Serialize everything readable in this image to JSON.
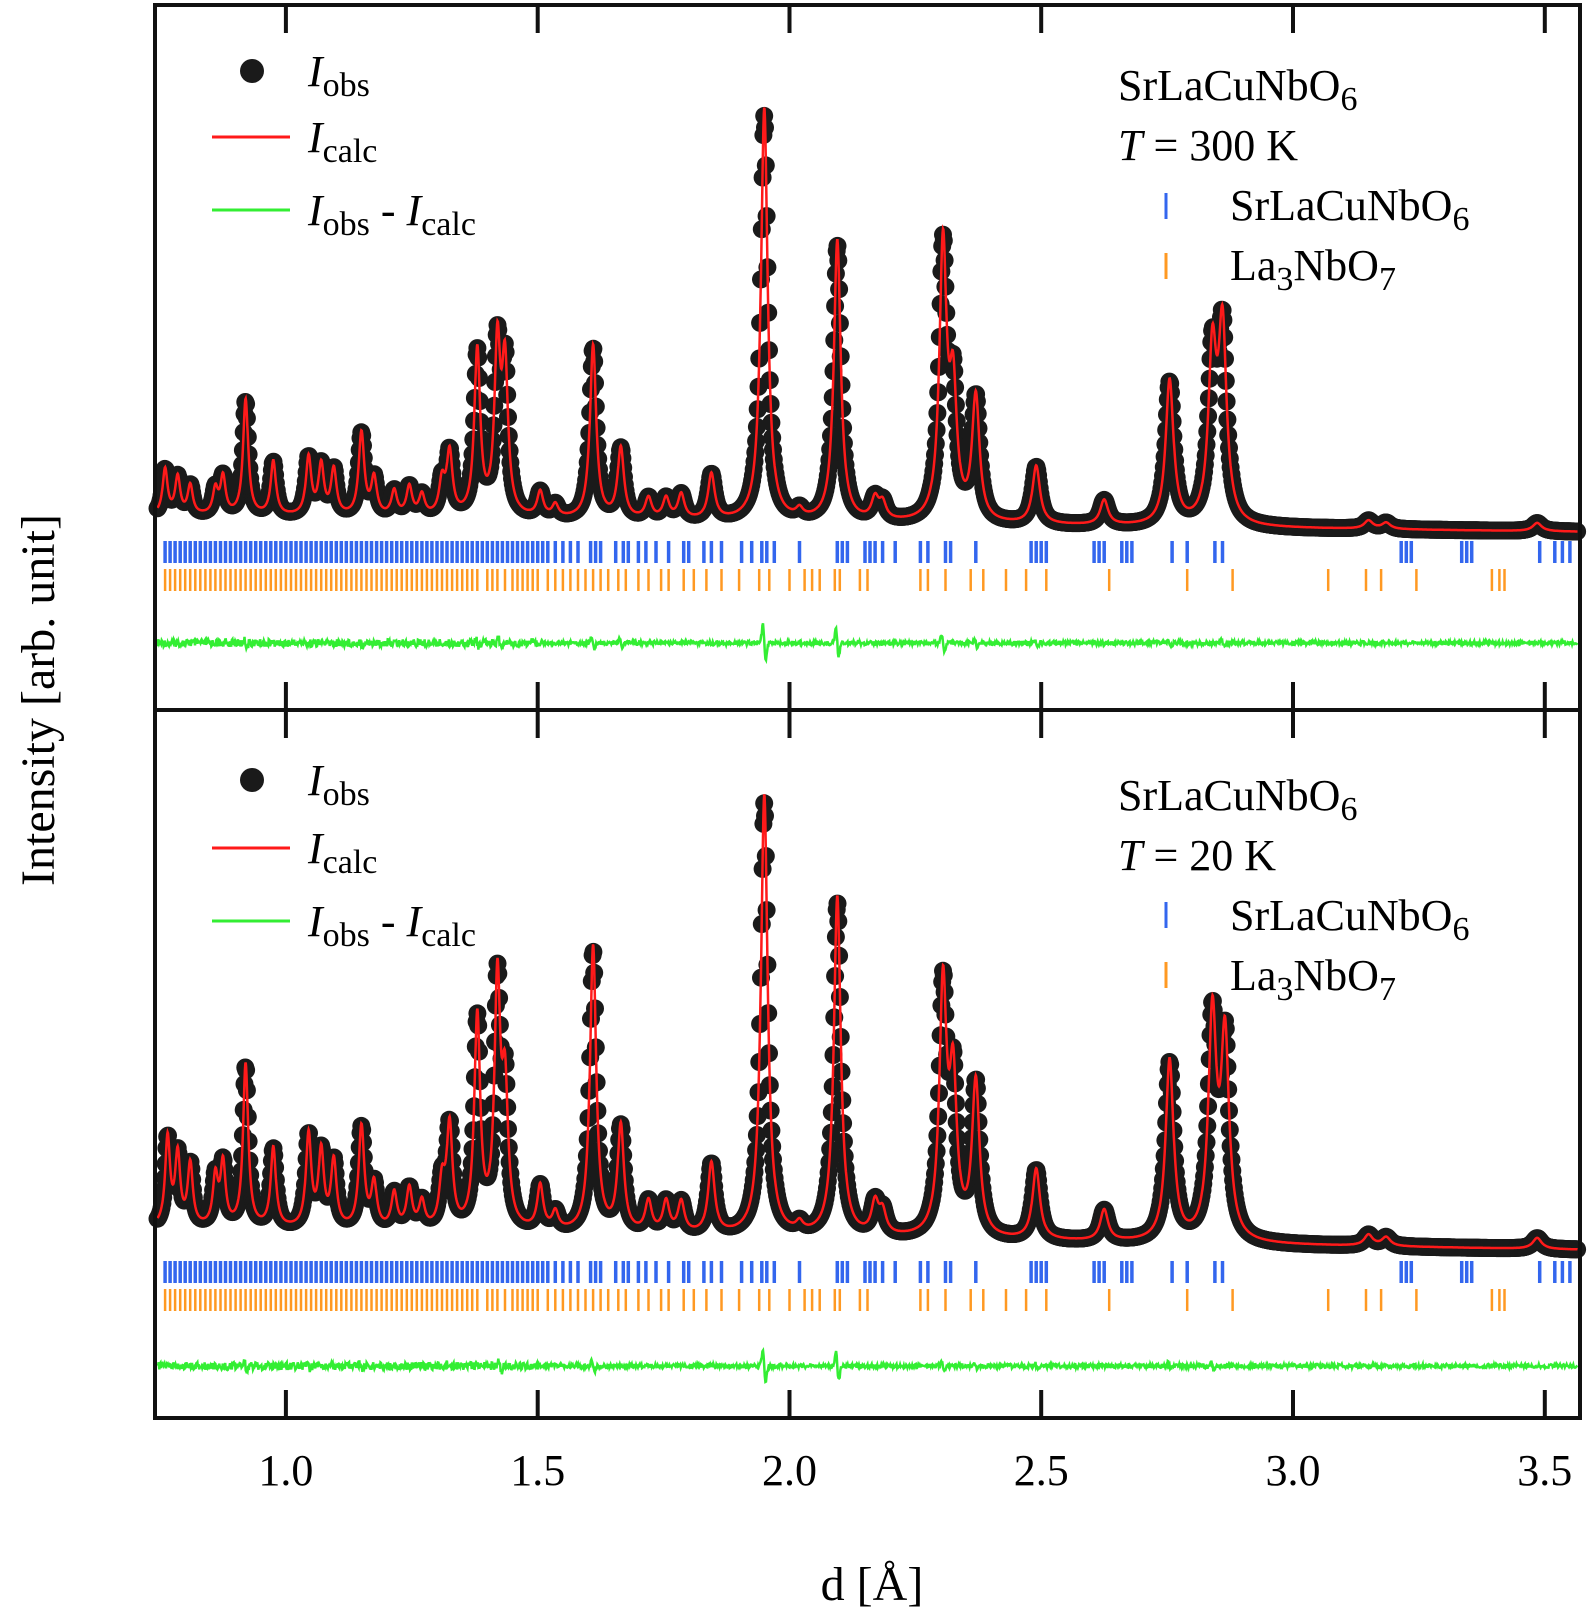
{
  "chart_data": {
    "type": "line",
    "xlabel": "d [Å]",
    "ylabel": "Intensity [arb. unit]",
    "xlim": [
      0.74,
      3.57
    ],
    "xticks": [
      "1.0",
      "1.5",
      "2.0",
      "2.5",
      "3.0",
      "3.5"
    ],
    "xtick_values": [
      1.0,
      1.5,
      2.0,
      2.5,
      3.0,
      3.5
    ],
    "colors": {
      "obs": "#1a1a1a",
      "calc": "#ff1a1a",
      "diff": "#33ee33",
      "phase1": "#3366ee",
      "phase2": "#ff9922"
    },
    "legend": {
      "obs": {
        "main": "I",
        "sub": "obs"
      },
      "calc": {
        "main": "I",
        "sub": "calc"
      },
      "diff": {
        "main": "I",
        "sub": "obs",
        "sep": " - ",
        "main2": "I",
        "sub2": "calc"
      }
    },
    "phases": [
      {
        "name": "SrLaCuNbO",
        "sub": "6"
      },
      {
        "name": "La",
        "sub": "3",
        "name2": "NbO",
        "sub2": "7"
      }
    ],
    "panels": [
      {
        "id": "top",
        "compound": {
          "name": "SrLaCuNbO",
          "sub": "6"
        },
        "temperature": {
          "symbol": "T",
          "text": " = 300 K"
        },
        "baseline": 0.04,
        "peaks": [
          {
            "d": 0.76,
            "h": 0.11
          },
          {
            "d": 0.785,
            "h": 0.09
          },
          {
            "d": 0.81,
            "h": 0.07
          },
          {
            "d": 0.86,
            "h": 0.06
          },
          {
            "d": 0.875,
            "h": 0.09
          },
          {
            "d": 0.92,
            "h": 0.28
          },
          {
            "d": 0.975,
            "h": 0.13
          },
          {
            "d": 1.045,
            "h": 0.14
          },
          {
            "d": 1.07,
            "h": 0.12
          },
          {
            "d": 1.095,
            "h": 0.11
          },
          {
            "d": 1.15,
            "h": 0.2
          },
          {
            "d": 1.175,
            "h": 0.09
          },
          {
            "d": 1.215,
            "h": 0.06
          },
          {
            "d": 1.245,
            "h": 0.07
          },
          {
            "d": 1.27,
            "h": 0.05
          },
          {
            "d": 1.31,
            "h": 0.08
          },
          {
            "d": 1.325,
            "h": 0.15
          },
          {
            "d": 1.38,
            "h": 0.4
          },
          {
            "d": 1.42,
            "h": 0.4
          },
          {
            "d": 1.435,
            "h": 0.35
          },
          {
            "d": 1.505,
            "h": 0.06
          },
          {
            "d": 1.535,
            "h": 0.03
          },
          {
            "d": 1.61,
            "h": 0.42
          },
          {
            "d": 1.665,
            "h": 0.17
          },
          {
            "d": 1.72,
            "h": 0.05
          },
          {
            "d": 1.755,
            "h": 0.05
          },
          {
            "d": 1.785,
            "h": 0.06
          },
          {
            "d": 1.845,
            "h": 0.11
          },
          {
            "d": 1.95,
            "h": 1.0
          },
          {
            "d": 2.02,
            "h": 0.02
          },
          {
            "d": 2.095,
            "h": 0.68
          },
          {
            "d": 2.17,
            "h": 0.05
          },
          {
            "d": 2.185,
            "h": 0.04
          },
          {
            "d": 2.305,
            "h": 0.66
          },
          {
            "d": 2.325,
            "h": 0.3
          },
          {
            "d": 2.37,
            "h": 0.3
          },
          {
            "d": 2.49,
            "h": 0.14
          },
          {
            "d": 2.625,
            "h": 0.06
          },
          {
            "d": 2.755,
            "h": 0.35
          },
          {
            "d": 2.84,
            "h": 0.4
          },
          {
            "d": 2.86,
            "h": 0.46
          },
          {
            "d": 3.15,
            "h": 0.02
          },
          {
            "d": 3.185,
            "h": 0.015
          },
          {
            "d": 3.485,
            "h": 0.02
          }
        ],
        "diff_features": [
          {
            "d": 0.92,
            "a": 0.5
          },
          {
            "d": 1.15,
            "a": 0.4
          },
          {
            "d": 1.38,
            "a": 0.6
          },
          {
            "d": 1.425,
            "a": 0.9
          },
          {
            "d": 1.61,
            "a": 1.0
          },
          {
            "d": 1.665,
            "a": 0.6
          },
          {
            "d": 1.95,
            "a": 3.0
          },
          {
            "d": 2.095,
            "a": 2.2
          },
          {
            "d": 2.305,
            "a": 1.4
          },
          {
            "d": 2.37,
            "a": 0.7
          },
          {
            "d": 2.49,
            "a": 0.5
          },
          {
            "d": 2.755,
            "a": 0.5
          },
          {
            "d": 2.86,
            "a": 0.5
          }
        ]
      },
      {
        "id": "bottom",
        "compound": {
          "name": "SrLaCuNbO",
          "sub": "6"
        },
        "temperature": {
          "symbol": "T",
          "text": " = 20 K"
        },
        "baseline": 0.05,
        "peaks": [
          {
            "d": 0.765,
            "h": 0.2
          },
          {
            "d": 0.785,
            "h": 0.16
          },
          {
            "d": 0.81,
            "h": 0.14
          },
          {
            "d": 0.86,
            "h": 0.11
          },
          {
            "d": 0.875,
            "h": 0.14
          },
          {
            "d": 0.92,
            "h": 0.37
          },
          {
            "d": 0.975,
            "h": 0.18
          },
          {
            "d": 1.045,
            "h": 0.21
          },
          {
            "d": 1.07,
            "h": 0.17
          },
          {
            "d": 1.095,
            "h": 0.15
          },
          {
            "d": 1.15,
            "h": 0.23
          },
          {
            "d": 1.175,
            "h": 0.1
          },
          {
            "d": 1.215,
            "h": 0.08
          },
          {
            "d": 1.245,
            "h": 0.09
          },
          {
            "d": 1.27,
            "h": 0.06
          },
          {
            "d": 1.31,
            "h": 0.1
          },
          {
            "d": 1.325,
            "h": 0.23
          },
          {
            "d": 1.38,
            "h": 0.48
          },
          {
            "d": 1.42,
            "h": 0.55
          },
          {
            "d": 1.435,
            "h": 0.3
          },
          {
            "d": 1.505,
            "h": 0.1
          },
          {
            "d": 1.535,
            "h": 0.04
          },
          {
            "d": 1.61,
            "h": 0.65
          },
          {
            "d": 1.665,
            "h": 0.24
          },
          {
            "d": 1.72,
            "h": 0.07
          },
          {
            "d": 1.755,
            "h": 0.07
          },
          {
            "d": 1.785,
            "h": 0.07
          },
          {
            "d": 1.845,
            "h": 0.16
          },
          {
            "d": 1.95,
            "h": 1.0
          },
          {
            "d": 2.02,
            "h": 0.02
          },
          {
            "d": 2.095,
            "h": 0.77
          },
          {
            "d": 2.17,
            "h": 0.07
          },
          {
            "d": 2.185,
            "h": 0.05
          },
          {
            "d": 2.305,
            "h": 0.56
          },
          {
            "d": 2.325,
            "h": 0.34
          },
          {
            "d": 2.37,
            "h": 0.35
          },
          {
            "d": 2.49,
            "h": 0.16
          },
          {
            "d": 2.625,
            "h": 0.07
          },
          {
            "d": 2.755,
            "h": 0.41
          },
          {
            "d": 2.84,
            "h": 0.5
          },
          {
            "d": 2.865,
            "h": 0.45
          },
          {
            "d": 3.15,
            "h": 0.025
          },
          {
            "d": 3.185,
            "h": 0.02
          },
          {
            "d": 3.485,
            "h": 0.025
          }
        ],
        "diff_features": [
          {
            "d": 0.92,
            "a": 0.8
          },
          {
            "d": 1.045,
            "a": 0.5
          },
          {
            "d": 1.15,
            "a": 0.4
          },
          {
            "d": 1.325,
            "a": 0.5
          },
          {
            "d": 1.425,
            "a": 0.9
          },
          {
            "d": 1.61,
            "a": 0.9
          },
          {
            "d": 1.95,
            "a": 2.6
          },
          {
            "d": 2.095,
            "a": 2.4
          },
          {
            "d": 2.305,
            "a": 0.7
          },
          {
            "d": 2.37,
            "a": 0.6
          },
          {
            "d": 2.49,
            "a": 0.5
          },
          {
            "d": 2.755,
            "a": 0.5
          },
          {
            "d": 2.84,
            "a": 0.6
          }
        ]
      }
    ],
    "ticks_phase1": [
      0.76,
      0.77,
      0.78,
      0.79,
      0.8,
      0.81,
      0.82,
      0.83,
      0.84,
      0.85,
      0.86,
      0.87,
      0.88,
      0.89,
      0.9,
      0.91,
      0.92,
      0.93,
      0.94,
      0.95,
      0.96,
      0.97,
      0.98,
      0.99,
      1.0,
      1.01,
      1.02,
      1.03,
      1.04,
      1.05,
      1.06,
      1.07,
      1.08,
      1.09,
      1.1,
      1.11,
      1.12,
      1.13,
      1.14,
      1.15,
      1.16,
      1.17,
      1.18,
      1.19,
      1.2,
      1.21,
      1.22,
      1.23,
      1.24,
      1.25,
      1.26,
      1.27,
      1.28,
      1.29,
      1.3,
      1.31,
      1.32,
      1.33,
      1.34,
      1.35,
      1.36,
      1.37,
      1.38,
      1.39,
      1.4,
      1.41,
      1.42,
      1.43,
      1.44,
      1.45,
      1.46,
      1.47,
      1.48,
      1.49,
      1.5,
      1.51,
      1.52,
      1.535,
      1.55,
      1.565,
      1.58,
      1.605,
      1.615,
      1.625,
      1.655,
      1.67,
      1.68,
      1.7,
      1.715,
      1.735,
      1.76,
      1.79,
      1.8,
      1.83,
      1.845,
      1.865,
      1.905,
      1.925,
      1.945,
      1.955,
      1.97,
      2.02,
      2.095,
      2.105,
      2.115,
      2.15,
      2.16,
      2.17,
      2.185,
      2.21,
      2.26,
      2.275,
      2.31,
      2.32,
      2.37,
      2.48,
      2.49,
      2.5,
      2.51,
      2.605,
      2.615,
      2.625,
      2.66,
      2.67,
      2.68,
      2.76,
      2.79,
      2.845,
      2.86,
      3.215,
      3.225,
      3.235,
      3.335,
      3.345,
      3.355,
      3.49,
      3.52,
      3.535,
      3.55
    ],
    "ticks_phase2": [
      0.76,
      0.77,
      0.78,
      0.79,
      0.8,
      0.81,
      0.82,
      0.83,
      0.84,
      0.85,
      0.86,
      0.87,
      0.88,
      0.89,
      0.9,
      0.91,
      0.92,
      0.93,
      0.94,
      0.95,
      0.96,
      0.97,
      0.98,
      0.99,
      1.0,
      1.01,
      1.02,
      1.03,
      1.04,
      1.05,
      1.06,
      1.07,
      1.08,
      1.09,
      1.1,
      1.11,
      1.12,
      1.13,
      1.14,
      1.15,
      1.16,
      1.17,
      1.18,
      1.19,
      1.2,
      1.21,
      1.22,
      1.23,
      1.24,
      1.25,
      1.26,
      1.27,
      1.28,
      1.29,
      1.3,
      1.31,
      1.32,
      1.33,
      1.34,
      1.35,
      1.36,
      1.37,
      1.38,
      1.4,
      1.41,
      1.42,
      1.435,
      1.45,
      1.46,
      1.47,
      1.48,
      1.49,
      1.5,
      1.52,
      1.535,
      1.55,
      1.565,
      1.58,
      1.595,
      1.61,
      1.625,
      1.64,
      1.66,
      1.675,
      1.7,
      1.72,
      1.745,
      1.76,
      1.79,
      1.81,
      1.835,
      1.865,
      1.9,
      1.94,
      1.96,
      2.0,
      2.03,
      2.045,
      2.06,
      2.09,
      2.1,
      2.14,
      2.155,
      2.26,
      2.275,
      2.31,
      2.36,
      2.385,
      2.43,
      2.47,
      2.51,
      2.635,
      2.79,
      2.88,
      3.07,
      3.145,
      3.175,
      3.245,
      3.395,
      3.41,
      3.42
    ]
  }
}
